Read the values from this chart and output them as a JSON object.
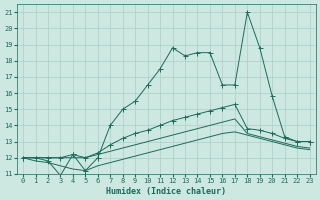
{
  "xlabel": "Humidex (Indice chaleur)",
  "background_color": "#cce8e0",
  "grid_color": "#aacfc8",
  "line_color": "#1a6b5a",
  "xlim": [
    -0.5,
    23.5
  ],
  "ylim": [
    11,
    21.5
  ],
  "xticks": [
    0,
    1,
    2,
    3,
    4,
    5,
    6,
    7,
    8,
    9,
    10,
    11,
    12,
    13,
    14,
    15,
    16,
    17,
    18,
    19,
    20,
    21,
    22,
    23
  ],
  "yticks": [
    11,
    12,
    13,
    14,
    15,
    16,
    17,
    18,
    19,
    20,
    21
  ],
  "s1_x": [
    0,
    1,
    2,
    3,
    4,
    5,
    6,
    7,
    8,
    9,
    10,
    11,
    12,
    13,
    14,
    15,
    16,
    17,
    18,
    19,
    20,
    21,
    22,
    23
  ],
  "s1_y": [
    12.0,
    12.0,
    11.8,
    10.9,
    12.2,
    11.2,
    12.0,
    14.0,
    15.0,
    15.5,
    16.5,
    17.5,
    18.8,
    18.3,
    18.5,
    18.5,
    16.5,
    16.5,
    21.0,
    18.8,
    15.8,
    13.3,
    13.0,
    13.0
  ],
  "s2_x": [
    0,
    1,
    2,
    3,
    4,
    5,
    6,
    7,
    8,
    9,
    10,
    11,
    12,
    13,
    14,
    15,
    16,
    17,
    18,
    19,
    20,
    21,
    22,
    23
  ],
  "s2_y": [
    12.0,
    12.0,
    12.0,
    12.0,
    12.2,
    12.0,
    12.3,
    12.8,
    13.2,
    13.5,
    13.7,
    14.0,
    14.3,
    14.5,
    14.7,
    14.9,
    15.1,
    15.3,
    13.8,
    13.7,
    13.5,
    13.2,
    13.0,
    13.0
  ],
  "s3_x": [
    0,
    1,
    2,
    3,
    4,
    5,
    6,
    7,
    8,
    9,
    10,
    11,
    12,
    13,
    14,
    15,
    16,
    17,
    18,
    19,
    20,
    21,
    22,
    23
  ],
  "s3_y": [
    12.0,
    12.0,
    12.0,
    12.0,
    12.0,
    12.0,
    12.2,
    12.4,
    12.6,
    12.8,
    13.0,
    13.2,
    13.4,
    13.6,
    13.8,
    14.0,
    14.2,
    14.4,
    13.5,
    13.3,
    13.1,
    12.9,
    12.7,
    12.6
  ],
  "s4_x": [
    0,
    1,
    2,
    3,
    4,
    5,
    6,
    7,
    8,
    9,
    10,
    11,
    12,
    13,
    14,
    15,
    16,
    17,
    18,
    19,
    20,
    21,
    22,
    23
  ],
  "s4_y": [
    12.0,
    11.8,
    11.7,
    11.5,
    11.3,
    11.2,
    11.5,
    11.7,
    11.9,
    12.1,
    12.3,
    12.5,
    12.7,
    12.9,
    13.1,
    13.3,
    13.5,
    13.6,
    13.4,
    13.2,
    13.0,
    12.8,
    12.6,
    12.5
  ]
}
